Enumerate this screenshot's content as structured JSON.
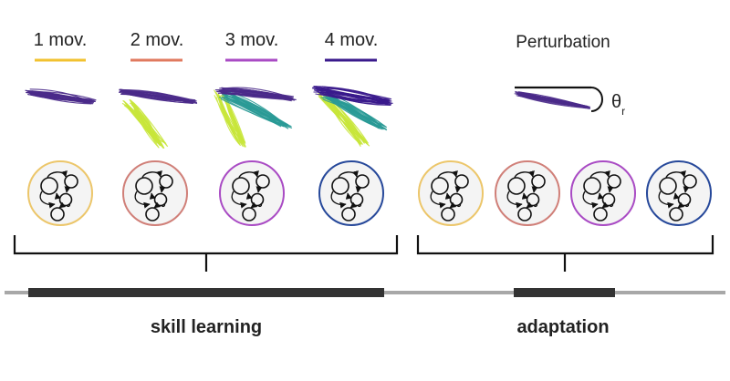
{
  "conditions": [
    {
      "label": "1 mov.",
      "color": "#f2c230",
      "circle_color": "#ecc66a"
    },
    {
      "label": "2 mov.",
      "color": "#e07a5f",
      "circle_color": "#d07f78"
    },
    {
      "label": "3 mov.",
      "color": "#a94bc4",
      "circle_color": "#a94bc4"
    },
    {
      "label": "4 mov.",
      "color": "#3a1a8c",
      "circle_color": "#26489a"
    }
  ],
  "perturbation": {
    "label": "Perturbation",
    "theta_base": "θ",
    "theta_sub": "r"
  },
  "trajectory_colors": [
    "#4a2a8a",
    "#c8e63a",
    "#2a9a96",
    "#3a1a8c"
  ],
  "phases": [
    {
      "label": "skill learning"
    },
    {
      "label": "adaptation"
    }
  ],
  "timeline": {
    "line_color": "#a8a8a8",
    "bar_color": "#333333"
  }
}
